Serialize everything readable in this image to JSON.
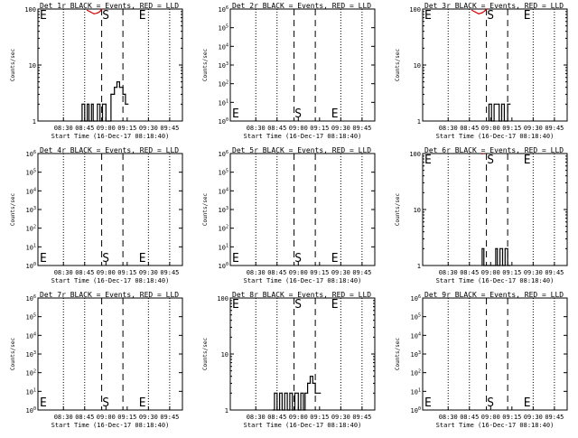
{
  "colors": {
    "events": "#000000",
    "lld": "#d40000",
    "axis": "#000000"
  },
  "chart_data": [
    {
      "type": "line",
      "title": "Det 1r BLACK = Events, RED = LLD",
      "ylabel": "Counts/sec",
      "xlabel": "Start Time (16-Dec-17 08:18:40)",
      "scale": "log",
      "ylim": [
        1,
        100
      ],
      "grid": false,
      "ytick_labels": [
        "1",
        "10",
        "100"
      ],
      "xtick_labels": [
        "08:30",
        "08:45",
        "09:00",
        "09:15",
        "09:30",
        "09:45"
      ],
      "markers": {
        "start": "S",
        "end": "E"
      },
      "series": [
        {
          "name": "Events",
          "x": [
            8.7,
            8.72,
            8.72,
            8.75,
            8.75,
            8.78,
            8.78,
            8.8,
            8.8,
            8.83,
            8.83,
            8.85,
            8.85,
            8.9,
            8.9,
            8.93,
            8.93,
            8.96,
            8.96,
            9.0,
            9.0,
            9.03,
            9.06,
            9.06,
            9.1,
            9.1,
            9.13,
            9.13,
            9.16,
            9.16,
            9.2,
            9.2,
            9.23,
            9.23,
            9.26
          ],
          "y": [
            1,
            1,
            2,
            2,
            1,
            1,
            2,
            2,
            1,
            1,
            2,
            2,
            1,
            1,
            2,
            2,
            1,
            1,
            2,
            2,
            1,
            1,
            1,
            3,
            3,
            4,
            4,
            5,
            5,
            4,
            4,
            3,
            3,
            2,
            2
          ]
        },
        {
          "name": "LLD",
          "x": [
            8.78,
            8.82,
            8.86,
            8.9,
            8.93,
            8.95
          ],
          "y": [
            95,
            88,
            82,
            85,
            90,
            100
          ]
        }
      ]
    },
    {
      "type": "line",
      "title": "Det 2r BLACK = Events, RED = LLD",
      "ylabel": "Counts/sec",
      "xlabel": "Start Time (16-Dec-17 08:18:40)",
      "scale": "log",
      "ylim": [
        1,
        1000000
      ],
      "grid": false,
      "ytick_labels": [
        "10^0",
        "10^1",
        "10^2",
        "10^3",
        "10^4",
        "10^5",
        "10^6"
      ],
      "xtick_labels": [
        "08:30",
        "08:45",
        "09:00",
        "09:15",
        "09:30",
        "09:45"
      ],
      "markers": {
        "start": "S",
        "end": "E"
      },
      "series": []
    },
    {
      "type": "line",
      "title": "Det 3r BLACK = Events, RED = LLD",
      "ylabel": "Counts/sec",
      "xlabel": "Start Time (16-Dec-17 08:18:40)",
      "scale": "log",
      "ylim": [
        1,
        100
      ],
      "grid": false,
      "ytick_labels": [
        "1",
        "10",
        "100"
      ],
      "xtick_labels": [
        "08:30",
        "08:45",
        "09:00",
        "09:15",
        "09:30",
        "09:45"
      ],
      "markers": {
        "start": "S",
        "end": "E"
      },
      "series": [
        {
          "name": "Events",
          "x": [
            8.98,
            8.98,
            9.01,
            9.01,
            9.04,
            9.04,
            9.1,
            9.1,
            9.13,
            9.13,
            9.16,
            9.16,
            9.2,
            9.2,
            9.23
          ],
          "y": [
            1,
            2,
            2,
            1,
            1,
            2,
            2,
            1,
            1,
            2,
            2,
            1,
            1,
            2,
            2
          ]
        },
        {
          "name": "LLD",
          "x": [
            8.78,
            8.82,
            8.86,
            8.9,
            8.93,
            8.95
          ],
          "y": [
            95,
            88,
            82,
            86,
            92,
            100
          ]
        }
      ]
    },
    {
      "type": "line",
      "title": "Det 4r BLACK = Events, RED = LLD",
      "ylabel": "Counts/sec",
      "xlabel": "Start Time (16-Dec-17 08:18:40)",
      "scale": "log",
      "ylim": [
        1,
        1000000
      ],
      "grid": false,
      "ytick_labels": [
        "10^0",
        "10^1",
        "10^2",
        "10^3",
        "10^4",
        "10^5",
        "10^6"
      ],
      "xtick_labels": [
        "08:30",
        "08:45",
        "09:00",
        "09:15",
        "09:30",
        "09:45"
      ],
      "markers": {
        "start": "S",
        "end": "E"
      },
      "series": []
    },
    {
      "type": "line",
      "title": "Det 5r BLACK = Events, RED = LLD",
      "ylabel": "Counts/sec",
      "xlabel": "Start Time (16-Dec-17 08:18:40)",
      "scale": "log",
      "ylim": [
        1,
        1000000
      ],
      "grid": false,
      "ytick_labels": [
        "10^0",
        "10^1",
        "10^2",
        "10^3",
        "10^4",
        "10^5",
        "10^6"
      ],
      "xtick_labels": [
        "08:30",
        "08:45",
        "09:00",
        "09:15",
        "09:30",
        "09:45"
      ],
      "markers": {
        "start": "S",
        "end": "E"
      },
      "series": []
    },
    {
      "type": "line",
      "title": "Det 6r BLACK = Events, RED = LLD",
      "ylabel": "Counts/sec",
      "xlabel": "Start Time (16-Dec-17 08:18:40)",
      "scale": "log",
      "ylim": [
        1,
        100
      ],
      "grid": false,
      "ytick_labels": [
        "1",
        "10",
        "100"
      ],
      "xtick_labels": [
        "08:30",
        "08:45",
        "09:00",
        "09:15",
        "09:30",
        "09:45"
      ],
      "markers": {
        "start": "S",
        "end": "E"
      },
      "series": [
        {
          "name": "Events",
          "x": [
            8.9,
            8.9,
            8.92,
            8.92,
            9.06,
            9.06,
            9.08,
            9.08,
            9.11,
            9.11,
            9.14,
            9.14,
            9.17,
            9.17,
            9.2,
            9.2,
            9.23
          ],
          "y": [
            1,
            2,
            2,
            1,
            1,
            2,
            2,
            1,
            1,
            2,
            2,
            1,
            1,
            2,
            2,
            1,
            1
          ]
        },
        {
          "name": "LLD",
          "x": [
            8.9,
            8.91
          ],
          "y": [
            98,
            100
          ]
        }
      ]
    },
    {
      "type": "line",
      "title": "Det 7r BLACK = Events, RED = LLD",
      "ylabel": "Counts/sec",
      "xlabel": "Start Time (16-Dec-17 08:18:40)",
      "scale": "log",
      "ylim": [
        1,
        1000000
      ],
      "grid": false,
      "ytick_labels": [
        "10^0",
        "10^1",
        "10^2",
        "10^3",
        "10^4",
        "10^5",
        "10^6"
      ],
      "xtick_labels": [
        "08:30",
        "08:45",
        "09:00",
        "09:15",
        "09:30",
        "09:45"
      ],
      "markers": {
        "start": "S",
        "end": "E"
      },
      "series": []
    },
    {
      "type": "line",
      "title": "Det 8r BLACK = Events, RED = LLD",
      "ylabel": "Counts/sec",
      "xlabel": "Start Time (16-Dec-17 08:18:40)",
      "scale": "log",
      "ylim": [
        1,
        100
      ],
      "grid": false,
      "ytick_labels": [
        "1",
        "10",
        "100"
      ],
      "xtick_labels": [
        "08:30",
        "08:45",
        "09:00",
        "09:15",
        "09:30",
        "09:45"
      ],
      "markers": {
        "start": "S",
        "end": "E"
      },
      "series": [
        {
          "name": "Events",
          "x": [
            8.7,
            8.72,
            8.72,
            8.75,
            8.75,
            8.78,
            8.78,
            8.81,
            8.81,
            8.84,
            8.84,
            8.87,
            8.87,
            8.9,
            8.9,
            8.93,
            8.93,
            8.96,
            8.96,
            9.0,
            9.0,
            9.03,
            9.03,
            9.06,
            9.06,
            9.08,
            9.08,
            9.11,
            9.11,
            9.14,
            9.14,
            9.17,
            9.17,
            9.2,
            9.2,
            9.26
          ],
          "y": [
            1,
            1,
            2,
            2,
            1,
            1,
            2,
            2,
            1,
            1,
            2,
            2,
            1,
            1,
            2,
            2,
            1,
            1,
            2,
            2,
            1,
            1,
            2,
            2,
            1,
            1,
            2,
            2,
            3,
            3,
            4,
            4,
            3,
            3,
            2,
            2
          ]
        }
      ]
    },
    {
      "type": "line",
      "title": "Det 9r BLACK = Events, RED = LLD",
      "ylabel": "Counts/sec",
      "xlabel": "Start Time (16-Dec-17 08:18:40)",
      "scale": "log",
      "ylim": [
        1,
        1000000
      ],
      "grid": false,
      "ytick_labels": [
        "10^0",
        "10^1",
        "10^2",
        "10^3",
        "10^4",
        "10^5",
        "10^6"
      ],
      "xtick_labels": [
        "08:30",
        "08:45",
        "09:00",
        "09:15",
        "09:30",
        "09:45"
      ],
      "markers": {
        "start": "S",
        "end": "E"
      },
      "series": []
    }
  ]
}
